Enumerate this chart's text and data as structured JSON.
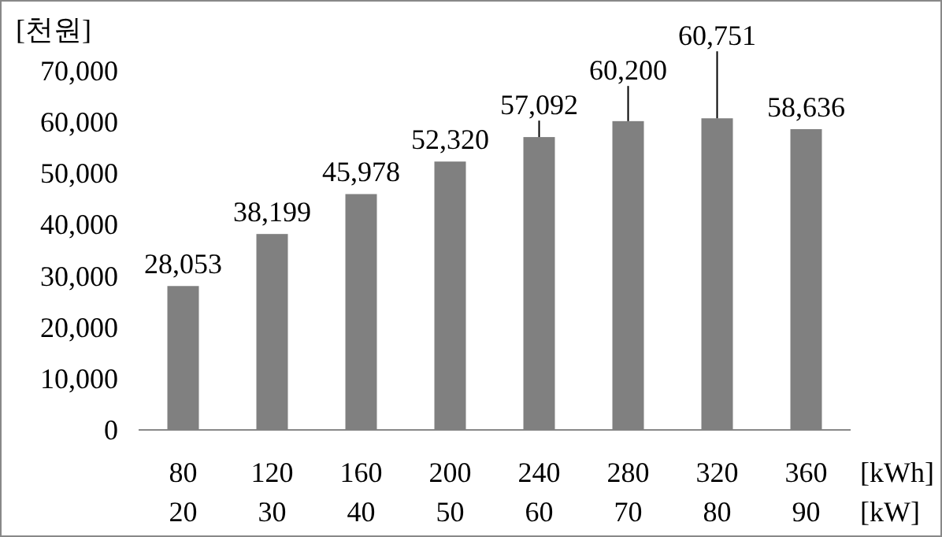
{
  "chart_data": {
    "type": "bar",
    "ylabel": "[천원]",
    "xlabel": "[kWh]\n[kW]",
    "categories": [
      "80\n20",
      "120\n30",
      "160\n40",
      "200\n50",
      "240\n60",
      "280\n70",
      "320\n80",
      "360\n90"
    ],
    "values": [
      28053,
      38199,
      45978,
      52320,
      57092,
      60200,
      60751,
      58636
    ],
    "color": "#808080",
    "value_labels": [
      "28,053",
      "38,199",
      "45,978",
      "52,320",
      "57,092",
      "60,200",
      "60,751",
      "58,636"
    ],
    "ylim": [
      0,
      70000
    ],
    "yticks": [
      {
        "value": 0,
        "label": "0"
      },
      {
        "value": 10000,
        "label": "10,000"
      },
      {
        "value": 20000,
        "label": "20,000"
      },
      {
        "value": 30000,
        "label": "30,000"
      },
      {
        "value": 40000,
        "label": "40,000"
      },
      {
        "value": 50000,
        "label": "50,000"
      },
      {
        "value": 60000,
        "label": "60,000"
      },
      {
        "value": 70000,
        "label": "70,000"
      }
    ]
  }
}
